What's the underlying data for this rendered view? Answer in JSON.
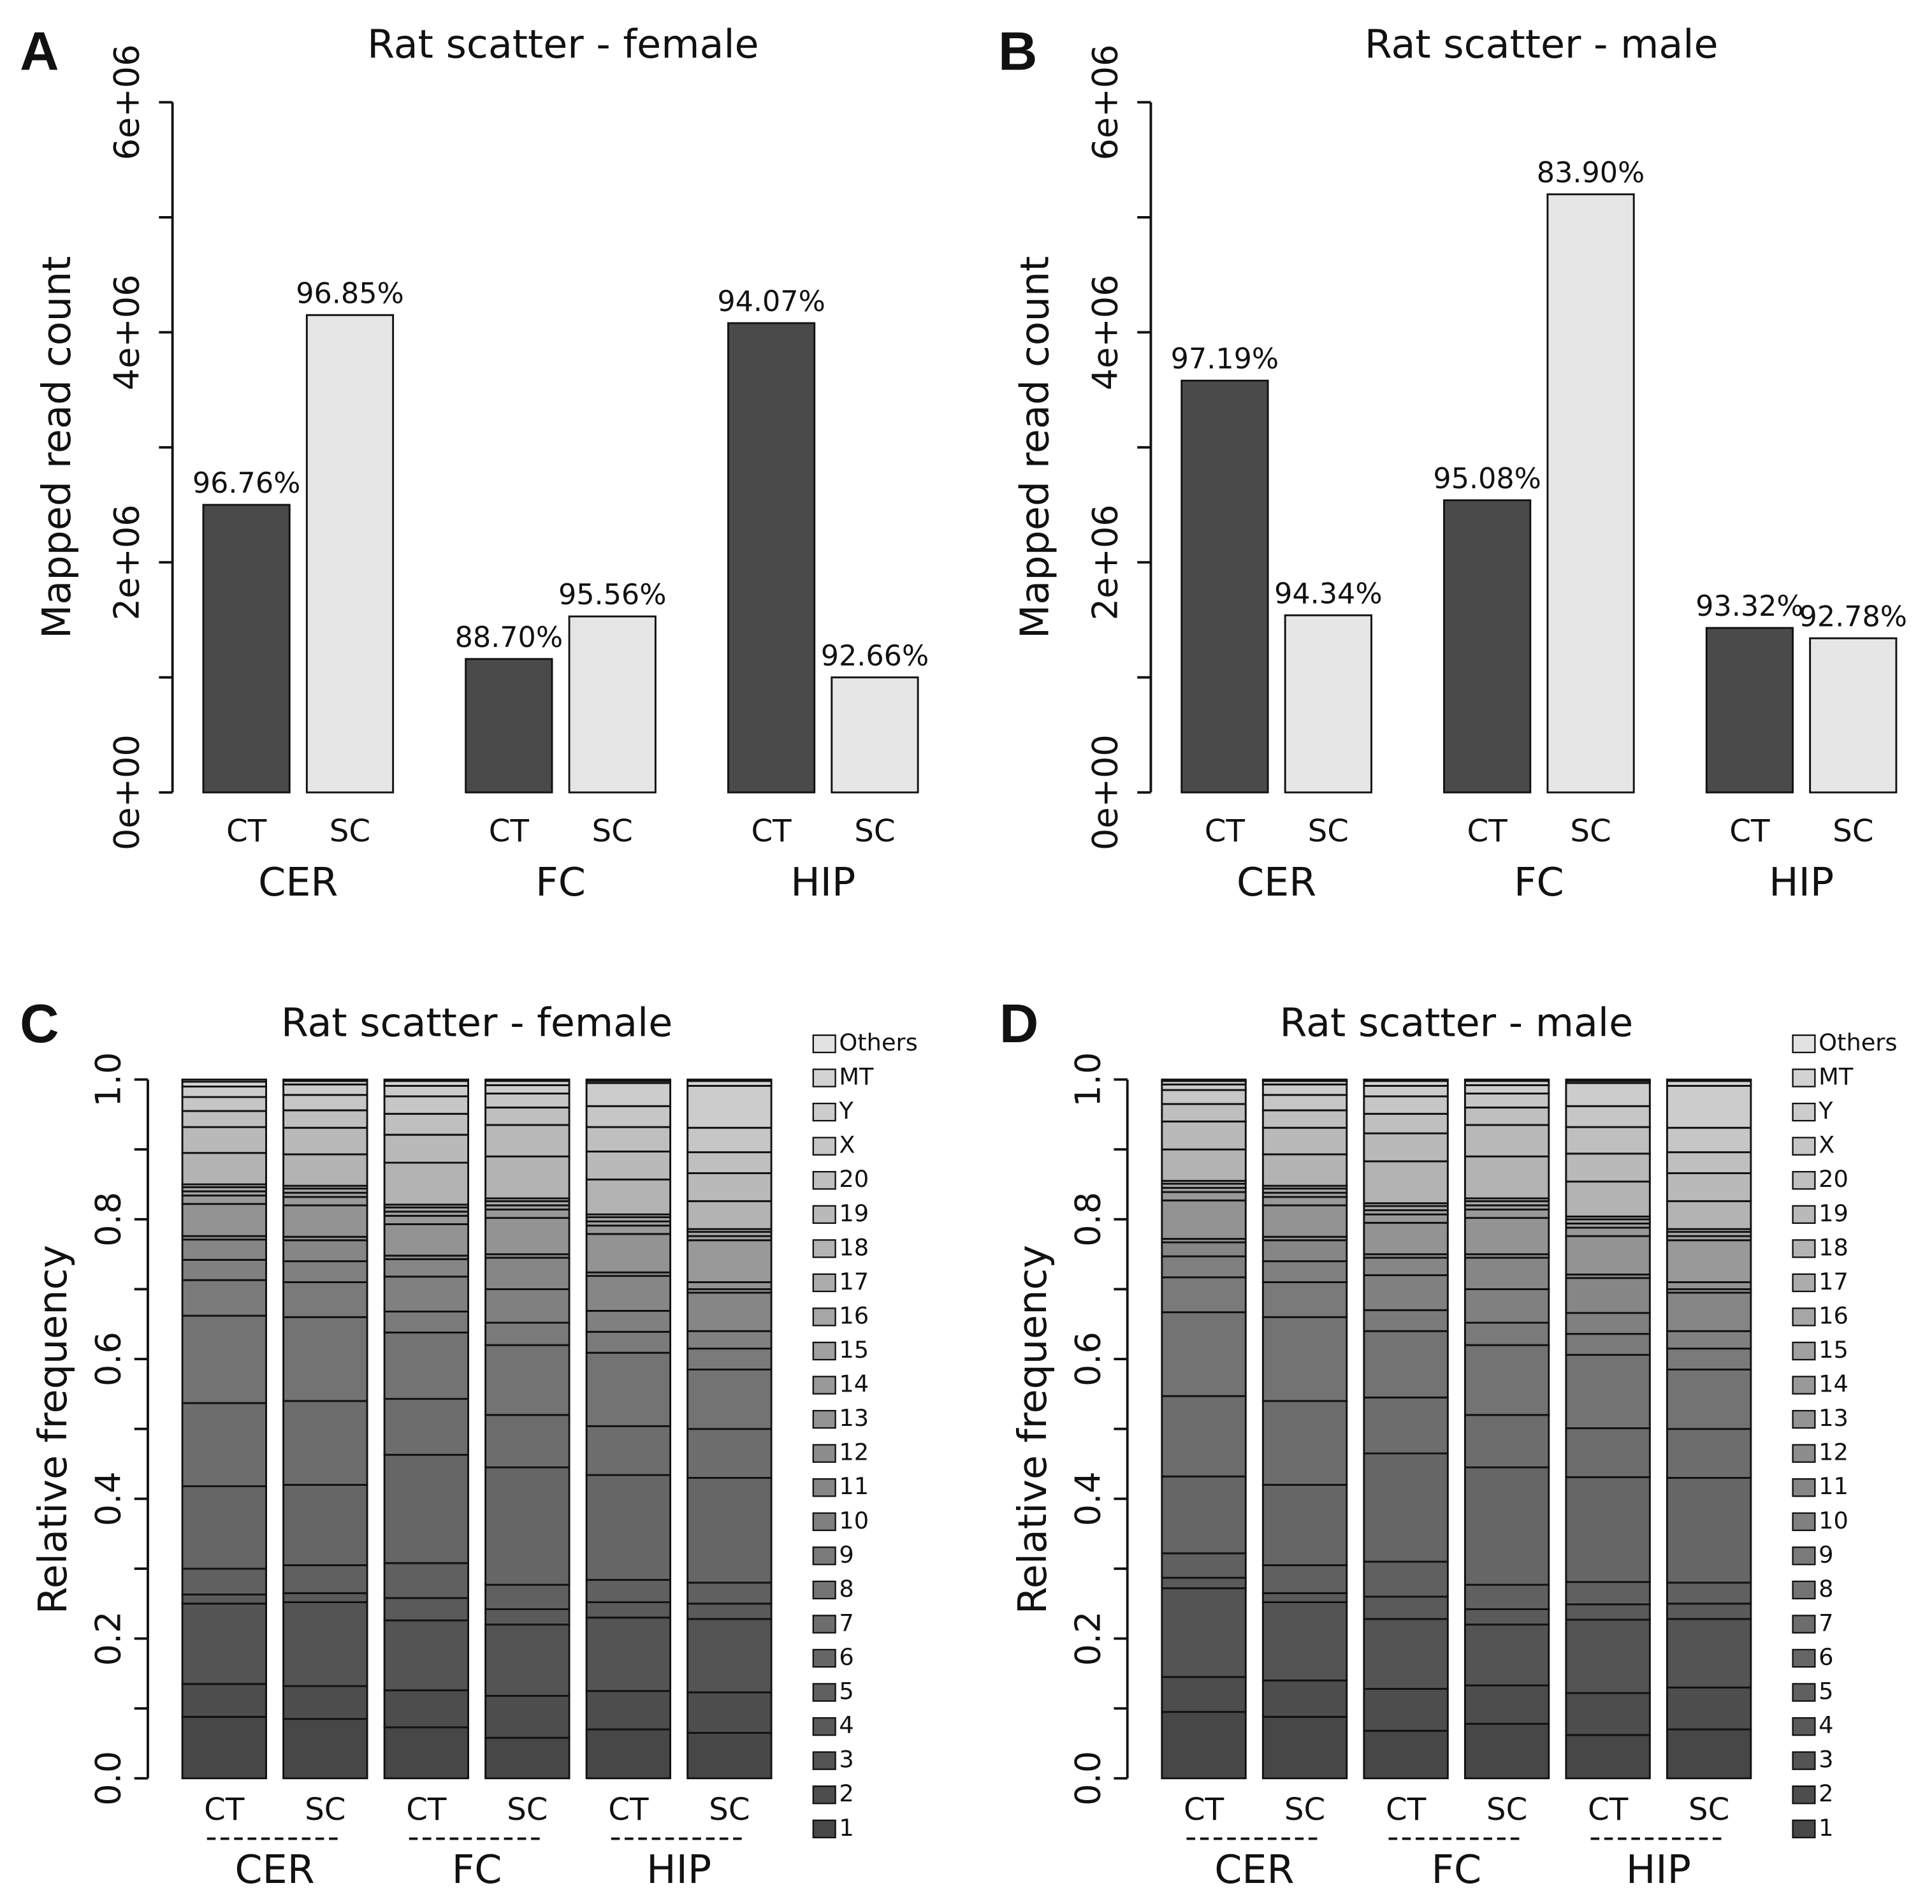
{
  "chart_data": [
    {
      "type": "bar",
      "panel": "A",
      "title": "Rat scatter - female",
      "ylabel": "Mapped read count",
      "groups": [
        "CER",
        "FC",
        "HIP"
      ],
      "categories": [
        "CT",
        "SC",
        "CT",
        "SC",
        "CT",
        "SC"
      ],
      "values": [
        2500000,
        4150000,
        1160000,
        1530000,
        4080000,
        1000000
      ],
      "bar_labels": [
        "96.76%",
        "96.85%",
        "88.70%",
        "95.56%",
        "94.07%",
        "92.66%"
      ],
      "colors": [
        "#4a4a4a",
        "#e6e6e6"
      ],
      "ylim": [
        0,
        6000000
      ],
      "yticks": [
        {
          "value": 0,
          "label": "0e+00"
        },
        {
          "value": 2000000,
          "label": "2e+06"
        },
        {
          "value": 4000000,
          "label": "4e+06"
        },
        {
          "value": 6000000,
          "label": "6e+06"
        }
      ],
      "minor_yticks": [
        1000000,
        3000000,
        5000000
      ]
    },
    {
      "type": "bar",
      "panel": "B",
      "title": "Rat scatter - male",
      "ylabel": "Mapped read count",
      "groups": [
        "CER",
        "FC",
        "HIP"
      ],
      "categories": [
        "CT",
        "SC",
        "CT",
        "SC",
        "CT",
        "SC"
      ],
      "values": [
        3580000,
        1540000,
        2540000,
        5200000,
        1430000,
        1340000
      ],
      "bar_labels": [
        "97.19%",
        "94.34%",
        "95.08%",
        "83.90%",
        "93.32%",
        "92.78%"
      ],
      "colors": [
        "#4a4a4a",
        "#e6e6e6"
      ],
      "ylim": [
        0,
        6000000
      ],
      "yticks": [
        {
          "value": 0,
          "label": "0e+00"
        },
        {
          "value": 2000000,
          "label": "2e+06"
        },
        {
          "value": 4000000,
          "label": "4e+06"
        },
        {
          "value": 6000000,
          "label": "6e+06"
        }
      ],
      "minor_yticks": [
        1000000,
        3000000,
        5000000
      ]
    },
    {
      "type": "stacked_bar",
      "panel": "C",
      "title": "Rat scatter - female",
      "ylabel": "Relative frequency",
      "groups": [
        "CER",
        "FC",
        "HIP"
      ],
      "categories": [
        "CT",
        "SC",
        "CT",
        "SC",
        "CT",
        "SC"
      ],
      "ylim": [
        0,
        1
      ],
      "yticks": [
        {
          "value": 0,
          "label": "0.0"
        },
        0.2,
        0.4,
        0.6,
        0.8,
        {
          "value": 1,
          "label": "1.0"
        }
      ],
      "minor_yticks": [
        0.1,
        0.3,
        0.5,
        0.7,
        0.9
      ],
      "series": [
        {
          "name": "1",
          "color": "#474747",
          "values": [
            0.088,
            0.085,
            0.073,
            0.058,
            0.07,
            0.065
          ]
        },
        {
          "name": "2",
          "color": "#4d4d4d",
          "values": [
            0.047,
            0.047,
            0.053,
            0.06,
            0.055,
            0.058
          ]
        },
        {
          "name": "3",
          "color": "#545454",
          "values": [
            0.115,
            0.12,
            0.1,
            0.102,
            0.105,
            0.105
          ]
        },
        {
          "name": "4",
          "color": "#5a5a5a",
          "values": [
            0.013,
            0.013,
            0.032,
            0.022,
            0.022,
            0.022
          ]
        },
        {
          "name": "5",
          "color": "#606060",
          "values": [
            0.037,
            0.04,
            0.05,
            0.035,
            0.032,
            0.03
          ]
        },
        {
          "name": "6",
          "color": "#666666",
          "values": [
            0.118,
            0.115,
            0.155,
            0.168,
            0.15,
            0.15
          ]
        },
        {
          "name": "7",
          "color": "#6d6d6d",
          "values": [
            0.119,
            0.12,
            0.08,
            0.075,
            0.07,
            0.07
          ]
        },
        {
          "name": "8",
          "color": "#737373",
          "values": [
            0.125,
            0.12,
            0.095,
            0.1,
            0.105,
            0.085
          ]
        },
        {
          "name": "9",
          "color": "#7a7a7a",
          "values": [
            0.051,
            0.05,
            0.03,
            0.032,
            0.03,
            0.03
          ]
        },
        {
          "name": "10",
          "color": "#808080",
          "values": [
            0.029,
            0.03,
            0.05,
            0.048,
            0.03,
            0.025
          ]
        },
        {
          "name": "11",
          "color": "#868686",
          "values": [
            0.029,
            0.03,
            0.025,
            0.045,
            0.05,
            0.055
          ]
        },
        {
          "name": "12",
          "color": "#8d8d8d",
          "values": [
            0.005,
            0.005,
            0.005,
            0.005,
            0.005,
            0.005
          ]
        },
        {
          "name": "13",
          "color": "#939393",
          "values": [
            0.046,
            0.045,
            0.045,
            0.052,
            0.055,
            0.01
          ]
        },
        {
          "name": "14",
          "color": "#999999",
          "values": [
            0.012,
            0.012,
            0.012,
            0.012,
            0.012,
            0.06
          ]
        },
        {
          "name": "15",
          "color": "#a0a0a0",
          "values": [
            0.006,
            0.006,
            0.006,
            0.006,
            0.006,
            0.006
          ]
        },
        {
          "name": "16",
          "color": "#a6a6a6",
          "values": [
            0.006,
            0.006,
            0.006,
            0.006,
            0.006,
            0.006
          ]
        },
        {
          "name": "17",
          "color": "#acacac",
          "values": [
            0.004,
            0.004,
            0.004,
            0.004,
            0.004,
            0.004
          ]
        },
        {
          "name": "18",
          "color": "#b3b3b3",
          "values": [
            0.045,
            0.045,
            0.06,
            0.06,
            0.05,
            0.04
          ]
        },
        {
          "name": "19",
          "color": "#b9b9b9",
          "values": [
            0.037,
            0.038,
            0.04,
            0.045,
            0.04,
            0.04
          ]
        },
        {
          "name": "20",
          "color": "#bfbfbf",
          "values": [
            0.023,
            0.025,
            0.03,
            0.025,
            0.035,
            0.03
          ]
        },
        {
          "name": "X",
          "color": "#c6c6c6",
          "values": [
            0.02,
            0.022,
            0.025,
            0.02,
            0.03,
            0.035
          ]
        },
        {
          "name": "Y",
          "color": "#cccccc",
          "values": [
            0.015,
            0.015,
            0.015,
            0.012,
            0.033,
            0.06
          ]
        },
        {
          "name": "MT",
          "color": "#d3d3d3",
          "values": [
            0.007,
            0.005,
            0.007,
            0.006,
            0.003,
            0.007
          ]
        },
        {
          "name": "Others",
          "color": "#e2e2e2",
          "values": [
            0.003,
            0.002,
            0.002,
            0.002,
            0.002,
            0.002
          ]
        }
      ]
    },
    {
      "type": "stacked_bar",
      "panel": "D",
      "title": "Rat scatter -  male",
      "ylabel": "Relative frequency",
      "groups": [
        "CER",
        "FC",
        "HIP"
      ],
      "categories": [
        "CT",
        "SC",
        "CT",
        "SC",
        "CT",
        "SC"
      ],
      "ylim": [
        0,
        1
      ],
      "yticks": [
        {
          "value": 0,
          "label": "0.0"
        },
        0.2,
        0.4,
        0.6,
        0.8,
        {
          "value": 1,
          "label": "1.0"
        }
      ],
      "minor_yticks": [
        0.1,
        0.3,
        0.5,
        0.7,
        0.9
      ],
      "series": [
        {
          "name": "1",
          "color": "#474747",
          "values": [
            0.095,
            0.088,
            0.068,
            0.078,
            0.062,
            0.07
          ]
        },
        {
          "name": "2",
          "color": "#4d4d4d",
          "values": [
            0.05,
            0.052,
            0.06,
            0.055,
            0.06,
            0.06
          ]
        },
        {
          "name": "3",
          "color": "#545454",
          "values": [
            0.127,
            0.112,
            0.1,
            0.087,
            0.105,
            0.098
          ]
        },
        {
          "name": "4",
          "color": "#5a5a5a",
          "values": [
            0.015,
            0.013,
            0.032,
            0.022,
            0.022,
            0.022
          ]
        },
        {
          "name": "5",
          "color": "#606060",
          "values": [
            0.035,
            0.04,
            0.05,
            0.035,
            0.032,
            0.03
          ]
        },
        {
          "name": "6",
          "color": "#666666",
          "values": [
            0.11,
            0.115,
            0.155,
            0.168,
            0.15,
            0.15
          ]
        },
        {
          "name": "7",
          "color": "#6d6d6d",
          "values": [
            0.115,
            0.12,
            0.08,
            0.075,
            0.07,
            0.07
          ]
        },
        {
          "name": "8",
          "color": "#737373",
          "values": [
            0.12,
            0.12,
            0.095,
            0.1,
            0.105,
            0.085
          ]
        },
        {
          "name": "9",
          "color": "#7a7a7a",
          "values": [
            0.05,
            0.05,
            0.03,
            0.032,
            0.03,
            0.03
          ]
        },
        {
          "name": "10",
          "color": "#808080",
          "values": [
            0.03,
            0.03,
            0.05,
            0.048,
            0.03,
            0.025
          ]
        },
        {
          "name": "11",
          "color": "#868686",
          "values": [
            0.02,
            0.03,
            0.025,
            0.045,
            0.05,
            0.055
          ]
        },
        {
          "name": "12",
          "color": "#8d8d8d",
          "values": [
            0.005,
            0.005,
            0.005,
            0.005,
            0.005,
            0.005
          ]
        },
        {
          "name": "13",
          "color": "#939393",
          "values": [
            0.055,
            0.045,
            0.045,
            0.052,
            0.055,
            0.01
          ]
        },
        {
          "name": "14",
          "color": "#999999",
          "values": [
            0.012,
            0.012,
            0.012,
            0.012,
            0.012,
            0.06
          ]
        },
        {
          "name": "15",
          "color": "#a0a0a0",
          "values": [
            0.006,
            0.006,
            0.006,
            0.006,
            0.006,
            0.006
          ]
        },
        {
          "name": "16",
          "color": "#a6a6a6",
          "values": [
            0.006,
            0.006,
            0.006,
            0.006,
            0.006,
            0.006
          ]
        },
        {
          "name": "17",
          "color": "#acacac",
          "values": [
            0.004,
            0.004,
            0.004,
            0.004,
            0.004,
            0.004
          ]
        },
        {
          "name": "18",
          "color": "#b3b3b3",
          "values": [
            0.045,
            0.045,
            0.06,
            0.06,
            0.05,
            0.04
          ]
        },
        {
          "name": "19",
          "color": "#b9b9b9",
          "values": [
            0.04,
            0.038,
            0.04,
            0.045,
            0.04,
            0.04
          ]
        },
        {
          "name": "20",
          "color": "#bfbfbf",
          "values": [
            0.025,
            0.025,
            0.028,
            0.025,
            0.038,
            0.03
          ]
        },
        {
          "name": "X",
          "color": "#c6c6c6",
          "values": [
            0.02,
            0.022,
            0.025,
            0.02,
            0.03,
            0.035
          ]
        },
        {
          "name": "Y",
          "color": "#cccccc",
          "values": [
            0.008,
            0.015,
            0.015,
            0.012,
            0.033,
            0.06
          ]
        },
        {
          "name": "MT",
          "color": "#d3d3d3",
          "values": [
            0.005,
            0.005,
            0.007,
            0.006,
            0.003,
            0.007
          ]
        },
        {
          "name": "Others",
          "color": "#e2e2e2",
          "values": [
            0.002,
            0.002,
            0.002,
            0.002,
            0.002,
            0.002
          ]
        }
      ]
    }
  ]
}
